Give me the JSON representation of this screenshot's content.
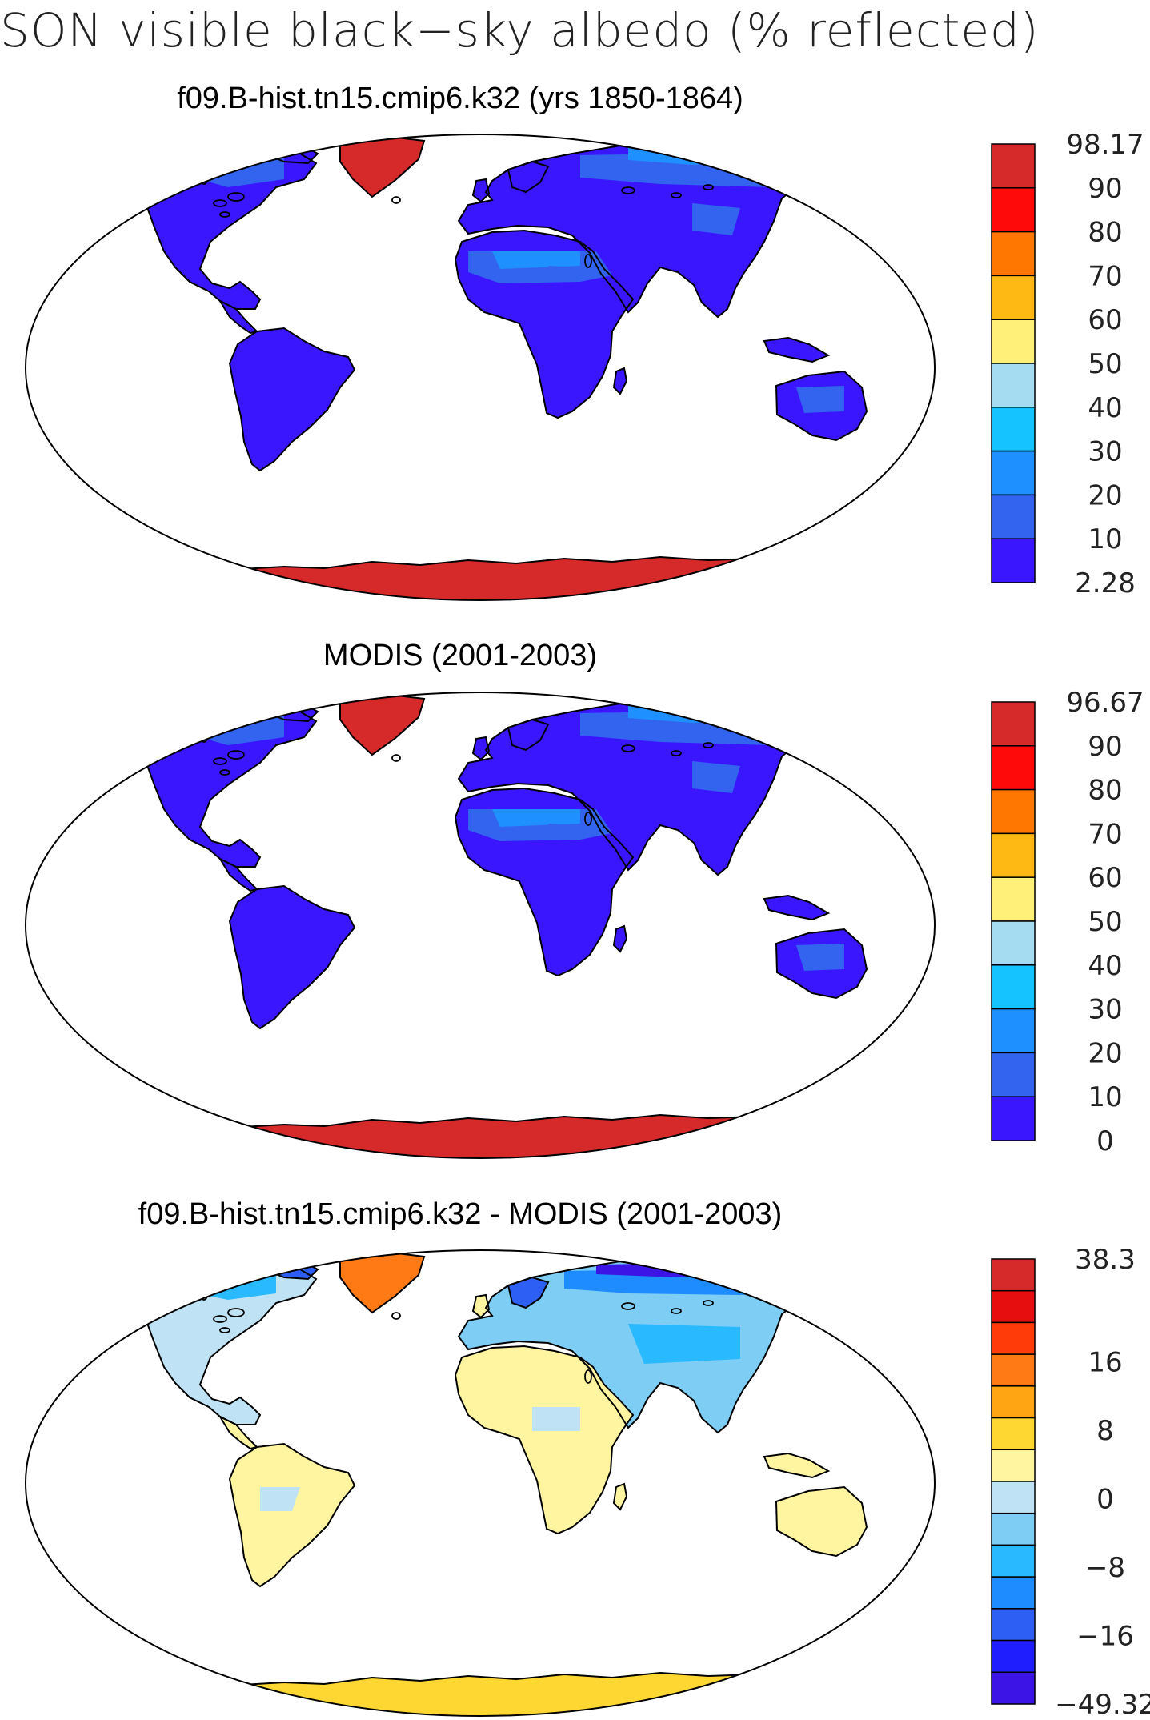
{
  "figure_title": "SON visible black−sky albedo (% reflected)",
  "colors": {
    "land_low": "#3a16ff",
    "ocean": "#ffffff",
    "coast": "#000000",
    "ice_high": "#d62929"
  },
  "chart_data": [
    {
      "type": "heatmap",
      "title": "f09.B-hist.tn15.cmip6.k32 (yrs 1850-1864)",
      "colorbar": {
        "labels": [
          "98.17",
          "90",
          "80",
          "70",
          "60",
          "50",
          "40",
          "30",
          "20",
          "10",
          "2.28"
        ],
        "colors": [
          "#d62929",
          "#ff0a0a",
          "#ff7700",
          "#ffb914",
          "#fff07a",
          "#a6dcf2",
          "#14c3ff",
          "#1e90ff",
          "#3264f0",
          "#3a16ff"
        ],
        "min": 2.28,
        "max": 98.17
      }
    },
    {
      "type": "heatmap",
      "title": "MODIS (2001-2003)",
      "colorbar": {
        "labels": [
          "96.67",
          "90",
          "80",
          "70",
          "60",
          "50",
          "40",
          "30",
          "20",
          "10",
          "0"
        ],
        "colors": [
          "#d62929",
          "#ff0a0a",
          "#ff7700",
          "#ffb914",
          "#fff07a",
          "#a6dcf2",
          "#14c3ff",
          "#1e90ff",
          "#3264f0",
          "#3a16ff"
        ],
        "min": 0,
        "max": 96.67
      }
    },
    {
      "type": "heatmap",
      "title": "f09.B-hist.tn15.cmip6.k32 - MODIS (2001-2003)",
      "colorbar": {
        "labels": [
          "38.3",
          "",
          "",
          "16",
          "",
          "8",
          "",
          "0",
          "",
          "−8",
          "",
          "−16",
          "",
          "−49.32"
        ],
        "colors": [
          "#d62929",
          "#e60e0e",
          "#ff3b0a",
          "#ff7a14",
          "#ffa514",
          "#ffd732",
          "#fff5a0",
          "#bfe3f5",
          "#7dcdf5",
          "#28b9ff",
          "#1e8cff",
          "#2d5ff5",
          "#1e1eff",
          "#3c14e6"
        ],
        "min": -49.32,
        "max": 38.3
      }
    }
  ]
}
